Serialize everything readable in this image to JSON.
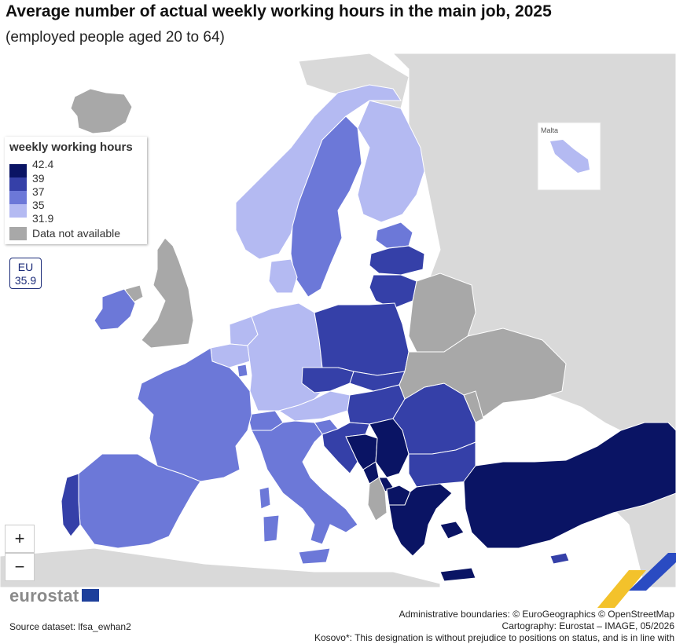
{
  "title": "Average number of actual weekly working hours in the main job, 2025",
  "subtitle": "(employed people aged 20 to 64)",
  "legend": {
    "title": "weekly working hours",
    "breaks": [
      "42.4",
      "39",
      "37",
      "35",
      "31.9"
    ],
    "colors": [
      "#0a1464",
      "#3540a8",
      "#6c78d8",
      "#b4baf2"
    ],
    "na_label": "Data not available",
    "na_color": "#a8a8a8"
  },
  "eu": {
    "label": "EU",
    "value": "35.9"
  },
  "zoom": {
    "in": "+",
    "out": "−"
  },
  "inset": {
    "label": "Malta",
    "class": 3
  },
  "logo": "eurostat",
  "footer": {
    "source": "Source dataset: lfsa_ewhan2",
    "boundaries": "Administrative boundaries: © EuroGeographics © OpenStreetMap",
    "cartography": "Cartography: Eurostat – IMAGE, 05/2026",
    "kosovo": "Kosovo*: This designation is without prejudice to positions on status, and is in line with"
  },
  "colors": {
    "sea": "#ffffff",
    "non_covered": "#d9d9d9",
    "border": "#ffffff"
  },
  "regions": [
    {
      "name": "Iceland",
      "class": "na"
    },
    {
      "name": "Ireland",
      "class": 2
    },
    {
      "name": "United Kingdom",
      "class": "na"
    },
    {
      "name": "Norway",
      "class": 3
    },
    {
      "name": "Sweden",
      "class": 2
    },
    {
      "name": "Finland",
      "class": 3
    },
    {
      "name": "Estonia",
      "class": 2
    },
    {
      "name": "Latvia",
      "class": 1
    },
    {
      "name": "Lithuania",
      "class": 1
    },
    {
      "name": "Denmark",
      "class": 3
    },
    {
      "name": "Netherlands",
      "class": 3
    },
    {
      "name": "Belgium",
      "class": 3
    },
    {
      "name": "Luxembourg",
      "class": 2
    },
    {
      "name": "Germany",
      "class": 3
    },
    {
      "name": "Poland",
      "class": 1
    },
    {
      "name": "Czechia",
      "class": 1
    },
    {
      "name": "Slovakia",
      "class": 1
    },
    {
      "name": "Austria",
      "class": 3
    },
    {
      "name": "Switzerland",
      "class": 2
    },
    {
      "name": "Hungary",
      "class": 1
    },
    {
      "name": "Slovenia",
      "class": 2
    },
    {
      "name": "Croatia",
      "class": 1
    },
    {
      "name": "Bosnia and Herzegovina",
      "class": 0
    },
    {
      "name": "Serbia",
      "class": 0
    },
    {
      "name": "Montenegro",
      "class": 0
    },
    {
      "name": "Kosovo*",
      "class": 0
    },
    {
      "name": "Albania",
      "class": "na"
    },
    {
      "name": "North Macedonia",
      "class": 0
    },
    {
      "name": "Romania",
      "class": 1
    },
    {
      "name": "Bulgaria",
      "class": 1
    },
    {
      "name": "Greece",
      "class": 0
    },
    {
      "name": "Türkiye",
      "class": 0
    },
    {
      "name": "Cyprus",
      "class": 1
    },
    {
      "name": "France",
      "class": 2
    },
    {
      "name": "Spain",
      "class": 2
    },
    {
      "name": "Portugal",
      "class": 1
    },
    {
      "name": "Italy",
      "class": 2
    },
    {
      "name": "Belarus",
      "class": "na"
    },
    {
      "name": "Ukraine",
      "class": "na"
    },
    {
      "name": "Moldova",
      "class": "na"
    }
  ]
}
